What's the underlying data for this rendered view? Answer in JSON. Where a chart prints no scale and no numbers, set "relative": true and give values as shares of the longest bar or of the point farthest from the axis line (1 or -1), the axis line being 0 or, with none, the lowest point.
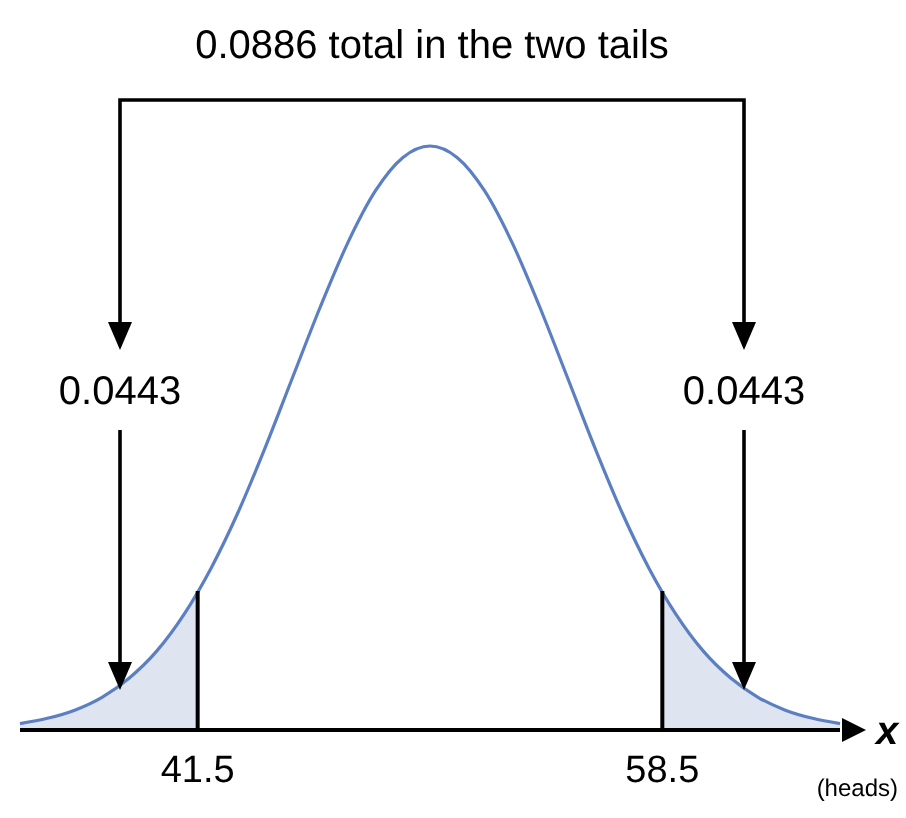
{
  "chart_data": {
    "type": "line",
    "title": "0.0886 total in the two tails",
    "xlabel": "x",
    "relative": true,
    "xlim": [
      35,
      65
    ],
    "xticks": [
      41.5,
      58.5
    ],
    "series": [
      {
        "color": "#5b7fc0",
        "x": [
          35,
          36,
          37,
          38,
          39,
          40,
          41,
          42,
          43,
          44,
          45,
          46,
          47,
          48,
          49,
          50,
          51,
          52,
          53,
          54,
          55,
          56,
          57,
          58,
          59,
          60,
          61,
          62,
          63,
          64,
          65
        ],
        "values": [
          0.011,
          0.02,
          0.034,
          0.056,
          0.089,
          0.135,
          0.198,
          0.278,
          0.375,
          0.487,
          0.607,
          0.726,
          0.835,
          0.923,
          0.98,
          1,
          0.98,
          0.923,
          0.835,
          0.726,
          0.607,
          0.487,
          0.375,
          0.278,
          0.198,
          0.135,
          0.089,
          0.056,
          0.034,
          0.02,
          0.011
        ]
      },
      {
        "type": "area",
        "color": "#dfe5f0",
        "x": [
          35,
          36,
          37,
          38,
          39,
          40,
          41,
          41.5
        ],
        "values": [
          0.011,
          0.02,
          0.034,
          0.056,
          0.089,
          0.135,
          0.198,
          0.236
        ]
      },
      {
        "type": "area",
        "color": "#dfe5f0",
        "x": [
          58.5,
          59,
          60,
          61,
          62,
          63,
          64,
          65
        ],
        "values": [
          0.236,
          0.198,
          0.135,
          0.089,
          0.056,
          0.034,
          0.02,
          0.011
        ]
      }
    ],
    "ref_lines": [
      {
        "axis": "x",
        "value": 41.5,
        "color": "#000000"
      },
      {
        "axis": "x",
        "value": 58.5,
        "color": "#000000"
      }
    ],
    "annotations": [
      "0.0443",
      "0.0443",
      "(heads)"
    ]
  }
}
